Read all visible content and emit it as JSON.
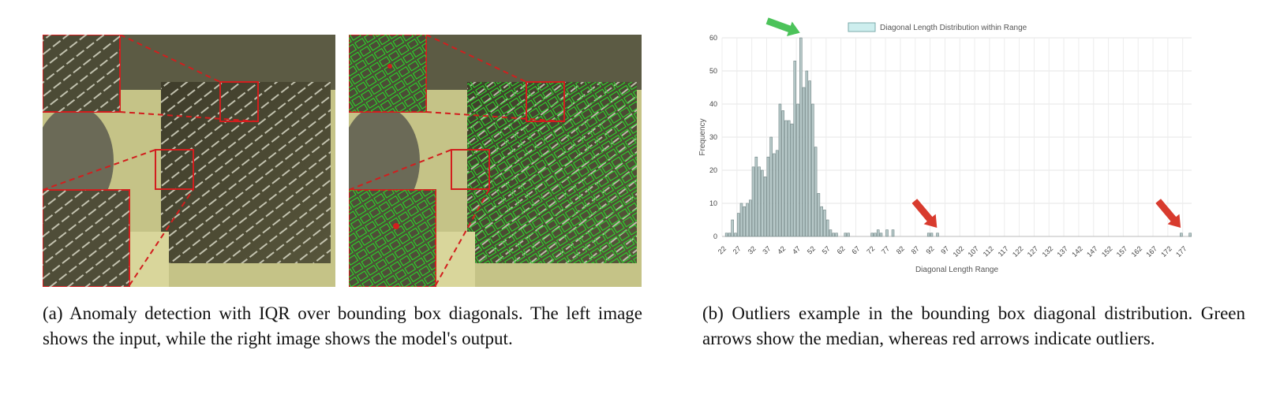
{
  "panel_a": {
    "caption": "(a) Anomaly detection with IQR over bounding box diagonals. The left image shows the input, while the right image shows the model's output.",
    "colors": {
      "highlight": "#d21e1e",
      "detection": "#2bd52b"
    }
  },
  "panel_b": {
    "caption": "(b) Outliers example in the bounding box diagonal distribution. Green arrows show the median, whereas red arrows indicate outliers.",
    "arrow_colors": {
      "median": "#4cc35a",
      "outlier": "#d83b2e"
    }
  },
  "chart_data": {
    "type": "bar",
    "legend": "Diagonal Length Distribution within Range",
    "legend_position": "top-center",
    "xlabel": "Diagonal Length Range",
    "ylabel": "Frequency",
    "ylim": [
      0,
      60
    ],
    "yticks": [
      0,
      10,
      20,
      30,
      40,
      50,
      60
    ],
    "grid": true,
    "bar_color": "#b7c9c9",
    "xticks": [
      "22",
      "27",
      "32",
      "37",
      "42",
      "47",
      "52",
      "57",
      "62",
      "67",
      "72",
      "77",
      "82",
      "87",
      "92",
      "97",
      "102",
      "107",
      "112",
      "117",
      "122",
      "127",
      "132",
      "137",
      "142",
      "147",
      "152",
      "157",
      "162",
      "167",
      "172",
      "177"
    ],
    "x": [
      22,
      23,
      24,
      25,
      26,
      27,
      28,
      29,
      30,
      31,
      32,
      33,
      34,
      35,
      36,
      37,
      38,
      39,
      40,
      41,
      42,
      43,
      44,
      45,
      46,
      47,
      48,
      49,
      50,
      51,
      52,
      53,
      54,
      55,
      56,
      57,
      58,
      59,
      62,
      63,
      71,
      72,
      73,
      74,
      76,
      78,
      90,
      91,
      93,
      175,
      178
    ],
    "values": [
      1,
      1,
      5,
      1,
      7,
      10,
      9,
      10,
      11,
      21,
      24,
      21,
      20,
      18,
      24,
      30,
      25,
      26,
      40,
      38,
      35,
      35,
      34,
      53,
      40,
      60,
      45,
      50,
      47,
      40,
      27,
      13,
      9,
      8,
      5,
      2,
      1,
      1,
      1,
      1,
      1,
      1,
      2,
      1,
      2,
      2,
      1,
      1,
      1,
      1,
      1
    ],
    "annotations": [
      {
        "type": "arrow",
        "color": "green",
        "meaning": "median",
        "at_x": 47
      },
      {
        "type": "arrow",
        "color": "red",
        "meaning": "outlier",
        "at_x": 93
      },
      {
        "type": "arrow",
        "color": "red",
        "meaning": "outlier",
        "at_x": 175
      }
    ]
  }
}
